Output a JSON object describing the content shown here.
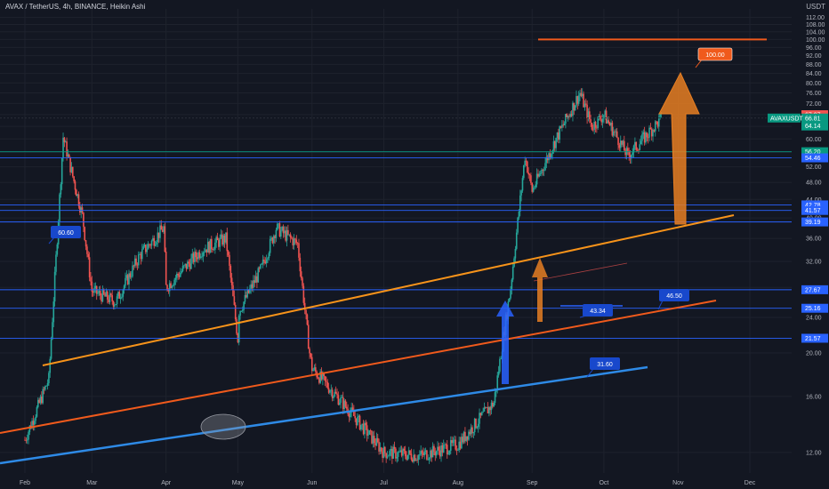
{
  "header": {
    "title": "AVAX / TetherUS, 4h, BINANCE, Heikin Ashi",
    "unit": "USDT"
  },
  "colors": {
    "background": "#131722",
    "up_candle": "#26a69a",
    "down_candle": "#ef5350",
    "orange_channel": "#f7931a",
    "orange_support": "#f05a1c",
    "blue_line": "#2e8ae6",
    "level_line": "#2962ff",
    "teal_level": "#089981",
    "label_blue": "#1848cc",
    "arrow_orange": "#e67e22",
    "arrow_blue": "#2962ff",
    "highlight_ellipse": "#9598a1"
  },
  "chart_data": {
    "type": "candlestick",
    "symbol": "AVAXUSDT",
    "log_scale": true,
    "ylim": [
      10.8,
      117
    ],
    "y_ticks": [
      "112.00",
      "108.00",
      "104.00",
      "100.00",
      "96.00",
      "92.00",
      "88.00",
      "84.00",
      "80.00",
      "76.00",
      "72.00",
      "68.00",
      "64.00",
      "60.00",
      "56.00",
      "52.00",
      "48.00",
      "44.00",
      "40.00",
      "36.00",
      "32.00",
      "28.00",
      "24.00",
      "20.00",
      "16.00",
      "12.00"
    ],
    "x_ticks": [
      "Feb",
      "Mar",
      "Apr",
      "May",
      "Jun",
      "Jul",
      "Aug",
      "Sep",
      "Oct",
      "Nov",
      "Dec"
    ],
    "price_path": [
      {
        "t": "Feb",
        "v": 12.8
      },
      {
        "t": "Feb+10",
        "v": 17.5
      },
      {
        "t": "Feb+16",
        "v": 60.6
      },
      {
        "t": "Feb+24",
        "v": 40.5
      },
      {
        "t": "Mar",
        "v": 27.5
      },
      {
        "t": "Mar+10",
        "v": 26.0
      },
      {
        "t": "Mar+20",
        "v": 33.0
      },
      {
        "t": "Mar+30",
        "v": 38.0
      },
      {
        "t": "Apr",
        "v": 28.0
      },
      {
        "t": "Apr+15",
        "v": 34.0
      },
      {
        "t": "Apr+25",
        "v": 36.0
      },
      {
        "t": "Apr+30",
        "v": 21.5
      },
      {
        "t": "May",
        "v": 24.5
      },
      {
        "t": "May+10",
        "v": 31.0
      },
      {
        "t": "May+16",
        "v": 38.0
      },
      {
        "t": "May+25",
        "v": 35.0
      },
      {
        "t": "May+30",
        "v": 20.0
      },
      {
        "t": "Jun",
        "v": 18.5
      },
      {
        "t": "Jun+15",
        "v": 15.0
      },
      {
        "t": "Jul",
        "v": 12.0
      },
      {
        "t": "Jul+15",
        "v": 11.8
      },
      {
        "t": "Aug",
        "v": 12.5
      },
      {
        "t": "Aug+15",
        "v": 15.5
      },
      {
        "t": "Aug+22",
        "v": 28.0
      },
      {
        "t": "Aug+28",
        "v": 55.0
      },
      {
        "t": "Sep",
        "v": 46.0
      },
      {
        "t": "Sep+10",
        "v": 60.0
      },
      {
        "t": "Sep+20",
        "v": 76.0
      },
      {
        "t": "Sep+25",
        "v": 64.0
      },
      {
        "t": "Oct",
        "v": 68.0
      },
      {
        "t": "Oct+10",
        "v": 55.0
      },
      {
        "t": "Oct+20",
        "v": 63.0
      },
      {
        "t": "Oct+24",
        "v": 66.81
      }
    ],
    "horizontal_levels": [
      {
        "value": 56.2,
        "label": "56.20",
        "color": "#089981"
      },
      {
        "value": 54.46,
        "label": "54.46",
        "color": "#2962ff"
      },
      {
        "value": 42.78,
        "label": "42.78",
        "color": "#2962ff"
      },
      {
        "value": 41.57,
        "label": "41.57",
        "color": "#2962ff"
      },
      {
        "value": 39.19,
        "label": "39.19",
        "color": "#2962ff"
      },
      {
        "value": 27.67,
        "label": "27.67",
        "color": "#2962ff"
      },
      {
        "value": 25.16,
        "label": "25.16",
        "color": "#2962ff"
      },
      {
        "value": 21.57,
        "label": "21.57",
        "color": "#2962ff"
      }
    ],
    "price_labels": [
      {
        "value": 67.97,
        "label": "67.97",
        "color": "#ef5350"
      },
      {
        "value": 66.81,
        "label": "66.81",
        "color": "#089981"
      },
      {
        "value": 64.14,
        "label": "64.14",
        "color": "#089981"
      }
    ],
    "symbol_tag": "AVAXUSDT",
    "annotations": [
      {
        "text": "60.60",
        "value": 60.6
      },
      {
        "text": "43.34",
        "value": 43.34
      },
      {
        "text": "46.50",
        "value": 46.5
      },
      {
        "text": "31.60",
        "value": 31.6
      },
      {
        "text": "100.00",
        "value": 100.0
      }
    ],
    "target_level": 100.0
  }
}
